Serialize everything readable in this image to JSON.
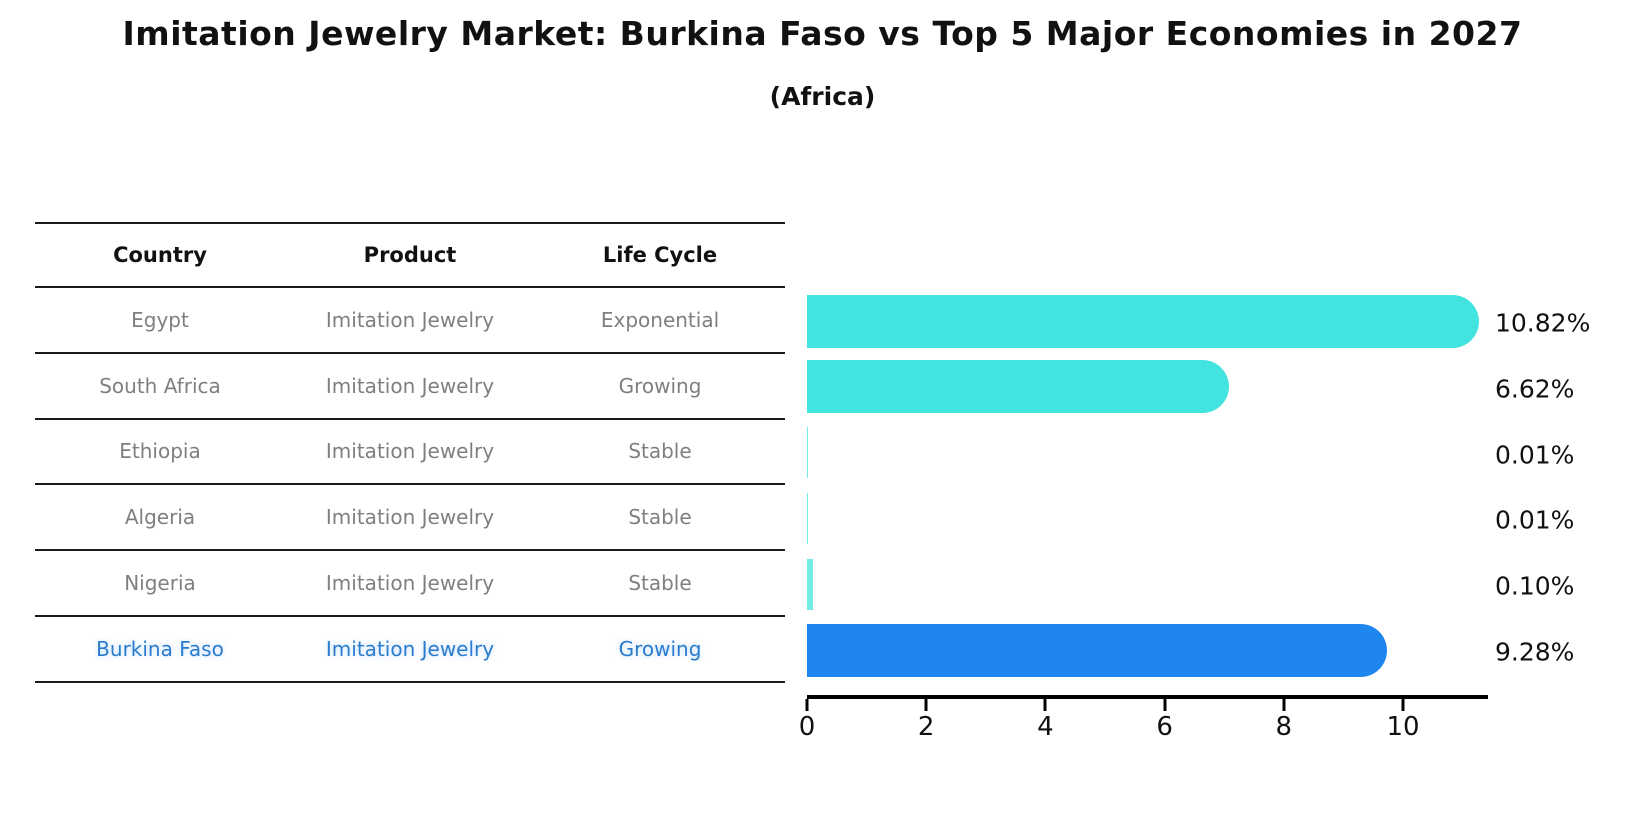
{
  "title": "Imitation Jewelry Market: Burkina Faso vs Top 5 Major Economies in 2027",
  "subtitle": "(Africa)",
  "table": {
    "headers": [
      "Country",
      "Product",
      "Life Cycle"
    ],
    "rows": [
      {
        "country": "Egypt",
        "product": "Imitation Jewelry",
        "life_cycle": "Exponential",
        "highlight": false
      },
      {
        "country": "South Africa",
        "product": "Imitation Jewelry",
        "life_cycle": "Growing",
        "highlight": false
      },
      {
        "country": "Ethiopia",
        "product": "Imitation Jewelry",
        "life_cycle": "Stable",
        "highlight": false
      },
      {
        "country": "Algeria",
        "product": "Imitation Jewelry",
        "life_cycle": "Stable",
        "highlight": false
      },
      {
        "country": "Nigeria",
        "product": "Imitation Jewelry",
        "life_cycle": "Stable",
        "highlight": false
      },
      {
        "country": "Burkina Faso",
        "product": "Imitation Jewelry",
        "life_cycle": "Growing",
        "highlight": true
      }
    ]
  },
  "chart_data": {
    "type": "bar",
    "orientation": "horizontal",
    "categories": [
      "Egypt",
      "South Africa",
      "Ethiopia",
      "Algeria",
      "Nigeria",
      "Burkina Faso"
    ],
    "values": [
      10.82,
      6.62,
      0.01,
      0.01,
      0.1,
      9.28
    ],
    "value_labels": [
      "10.82%",
      "6.62%",
      "0.01%",
      "0.01%",
      "0.10%",
      "9.28%"
    ],
    "xticks": [
      0,
      2,
      4,
      6,
      8,
      10
    ],
    "xlim": [
      0,
      11.4
    ],
    "grid": false,
    "legend": false,
    "highlight_index": 5,
    "bar_color": "#43E4DF",
    "highlight_color": "#1E86EE"
  },
  "colors": {
    "text": "#111111",
    "table_text": "#7f7f7f",
    "highlight_text": "#2b7ccc",
    "line": "#1a1a1a"
  }
}
